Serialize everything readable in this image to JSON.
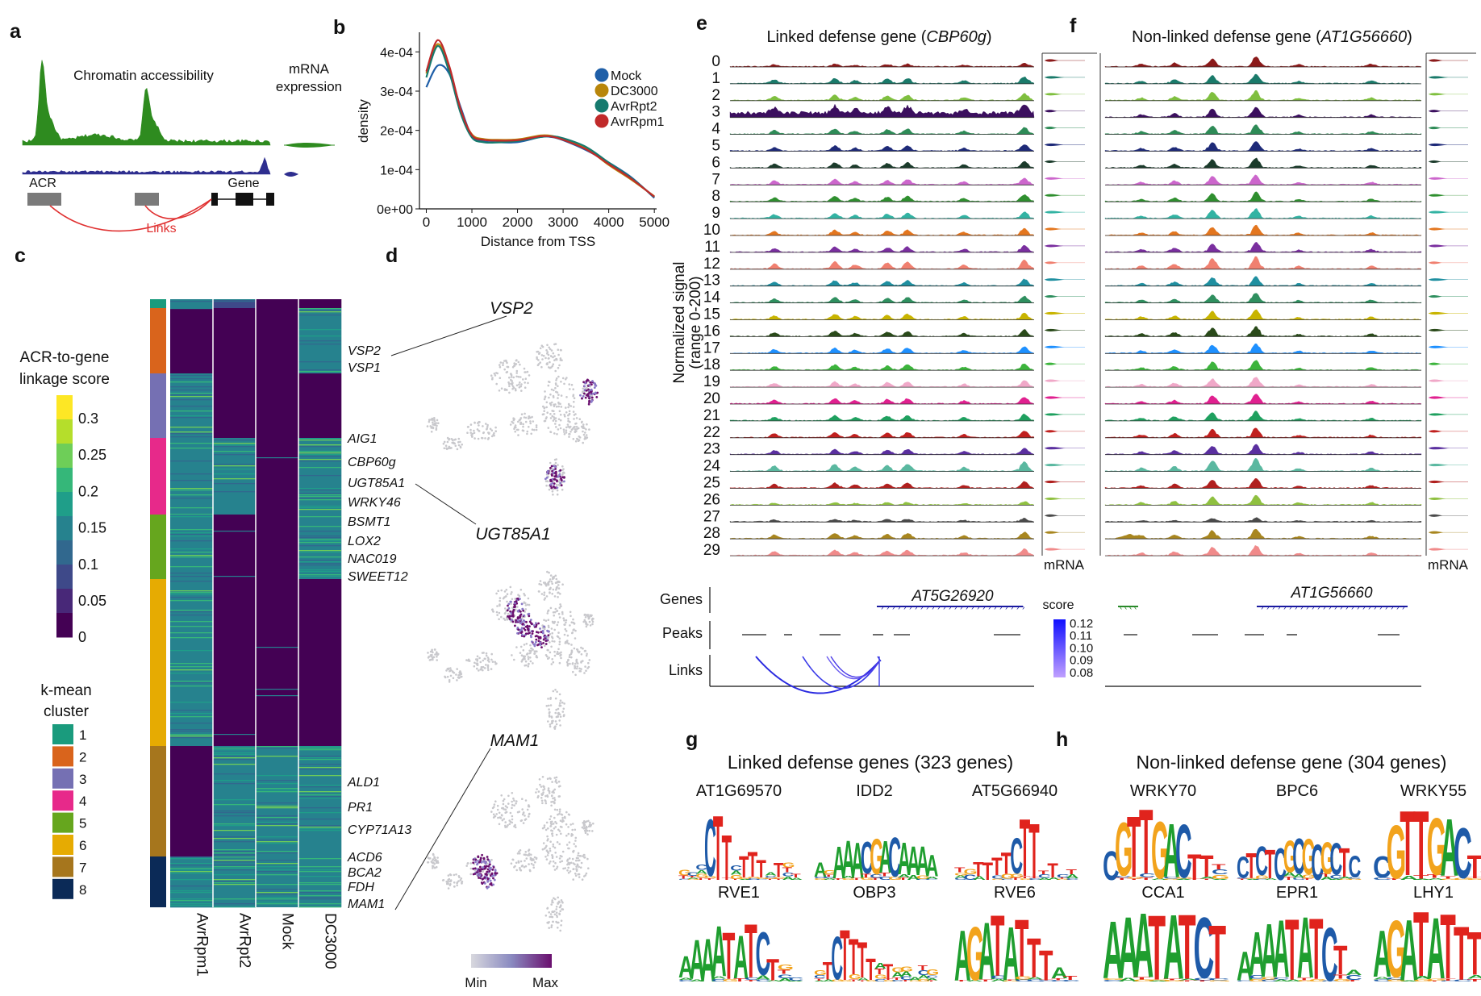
{
  "panels": {
    "a": {
      "label": "a",
      "chromatin_title": "Chromatin accessibility",
      "mrna_title_line1": "mRNA",
      "mrna_title_line2": "expression",
      "acr_label": "ACR",
      "gene_label": "Gene",
      "links_label": "Links",
      "colors": {
        "track1": "#2e8b1f",
        "track2": "#2e2e8f",
        "links": "#e03030"
      }
    },
    "b": {
      "label": "b",
      "chart_data": {
        "type": "line",
        "title": "",
        "xlabel": "Distance from TSS",
        "ylabel": "density",
        "xlim": [
          -150,
          5050
        ],
        "ylim": [
          0,
          0.00045
        ],
        "xticks": [
          0,
          1000,
          2000,
          3000,
          4000,
          5000
        ],
        "xtick_labels": [
          "0",
          "1000",
          "2000",
          "3000",
          "4000",
          "5000"
        ],
        "yticks": [
          0,
          0.0001,
          0.0002,
          0.0003,
          0.0004
        ],
        "ytick_labels": [
          "0e+00",
          "1e-04",
          "2e-04",
          "3e-04",
          "4e-04"
        ],
        "legend_position": "right",
        "x": [
          0,
          250,
          500,
          750,
          1000,
          1250,
          1500,
          2000,
          2500,
          2750,
          3000,
          3500,
          4000,
          4500,
          5000
        ],
        "series": [
          {
            "name": "Mock",
            "color": "#1f5fa8",
            "values": [
              0.00031,
              0.000365,
              0.000345,
              0.00026,
              0.000185,
              0.000172,
              0.00017,
              0.00017,
              0.000183,
              0.000183,
              0.000175,
              0.00015,
              0.000118,
              8e-05,
              2.8e-05
            ]
          },
          {
            "name": "DC3000",
            "color": "#b8860b",
            "values": [
              0.000345,
              0.00042,
              0.00036,
              0.00025,
              0.00019,
              0.000178,
              0.000176,
              0.000177,
              0.000187,
              0.000186,
              0.000178,
              0.000155,
              0.000112,
              7.4e-05,
              3.2e-05
            ]
          },
          {
            "name": "AvrRpt2",
            "color": "#167a6e",
            "values": [
              0.000335,
              0.000415,
              0.00035,
              0.000245,
              0.000182,
              0.00017,
              0.000169,
              0.000173,
              0.000183,
              0.000185,
              0.00018,
              0.000158,
              0.000118,
              7.8e-05,
              3e-05
            ]
          },
          {
            "name": "AvrRpm1",
            "color": "#c02a2a",
            "values": [
              0.00035,
              0.00043,
              0.000365,
              0.000255,
              0.000188,
              0.000176,
              0.000174,
              0.000175,
              0.000185,
              0.000184,
              0.000176,
              0.000152,
              0.000114,
              7.6e-05,
              3.1e-05
            ]
          }
        ]
      }
    },
    "c": {
      "label": "c",
      "legend_title_line1": "ACR-to-gene",
      "legend_title_line2": "linkage score",
      "score_ticks": [
        "0.3",
        "0.25",
        "0.2",
        "0.15",
        "0.1",
        "0.05",
        "0"
      ],
      "cluster_title_line1": "k-mean",
      "cluster_title_line2": "cluster",
      "clusters": [
        {
          "id": "1",
          "color": "#1a9b7d"
        },
        {
          "id": "2",
          "color": "#d9641c"
        },
        {
          "id": "3",
          "color": "#7570b3"
        },
        {
          "id": "4",
          "color": "#e7298a"
        },
        {
          "id": "5",
          "color": "#66a61e"
        },
        {
          "id": "6",
          "color": "#e6ab02"
        },
        {
          "id": "7",
          "color": "#a6761d"
        },
        {
          "id": "8",
          "color": "#0b2a57"
        }
      ],
      "columns": [
        "AvrRpm1",
        "AvrRpt2",
        "Mock",
        "DC3000"
      ],
      "genes": [
        "VSP2",
        "VSP1",
        "AIG1",
        "CBP60g",
        "UGT85A1",
        "WRKY46",
        "BSMT1",
        "LOX2",
        "NAC019",
        "SWEET12",
        "ALD1",
        "PR1",
        "CYP71A13",
        "ACD6",
        "BCA2",
        "FDH",
        "MAM1"
      ],
      "colors": {
        "low": "#440154",
        "mid": "#21918c",
        "high": "#fde725"
      }
    },
    "d": {
      "label": "d",
      "umap_titles": [
        "VSP2",
        "UGT85A1",
        "MAM1"
      ],
      "scale_min": "Min",
      "scale_max": "Max",
      "colors": {
        "base": "#c9c9cd",
        "hot": "#6a0f6e"
      }
    },
    "e": {
      "label": "e",
      "title_prefix": "Linked defense gene (",
      "title_gene": "CBP60g",
      "title_suffix": ")",
      "y_axis_line1": "Normalized signal",
      "y_axis_line2": "(range 0-200)",
      "mrna_label": "mRNA",
      "genes_row": "Genes",
      "peaks_row": "Peaks",
      "links_row": "Links",
      "gene_name": "AT5G26920"
    },
    "f": {
      "label": "f",
      "title_prefix": "Non-linked defense gene (",
      "title_gene": "AT1G56660",
      "title_suffix": ")",
      "mrna_label": "mRNA",
      "gene_name": "AT1G56660",
      "score_label": "score",
      "score_ticks": [
        "0.12",
        "0.11",
        "0.10",
        "0.09",
        "0.08"
      ]
    },
    "tracks": {
      "rows": [
        "0",
        "1",
        "2",
        "3",
        "4",
        "5",
        "6",
        "7",
        "8",
        "9",
        "10",
        "11",
        "12",
        "13",
        "14",
        "15",
        "16",
        "17",
        "18",
        "19",
        "20",
        "21",
        "22",
        "23",
        "24",
        "25",
        "26",
        "27",
        "28",
        "29"
      ],
      "colors": [
        "#8b1a1a",
        "#1a7a6a",
        "#7fbf3f",
        "#3b0f5e",
        "#2e8b57",
        "#1e2a78",
        "#1b3b2b",
        "#cc66cc",
        "#2f8f2f",
        "#33b3a3",
        "#e3761f",
        "#7a2f9f",
        "#f08070",
        "#1f8fa0",
        "#2f8f5f",
        "#c8b400",
        "#2a4a1a",
        "#1e90ff",
        "#3cb43c",
        "#f0a8c8",
        "#e0208f",
        "#1fa05f",
        "#c0201f",
        "#5a2f9f",
        "#5ab8a0",
        "#b0201f",
        "#8fc040",
        "#4a4a4a",
        "#a8861f",
        "#f08a8a",
        "#b8b8b8"
      ]
    },
    "g": {
      "label": "g",
      "title": "Linked defense genes (323 genes)",
      "motifs": [
        "AT1G69570",
        "IDD2",
        "AT5G66940",
        "RVE1",
        "OBP3",
        "RVE6"
      ]
    },
    "h": {
      "label": "h",
      "title": "Non-linked defense gene (304 genes)",
      "motifs": [
        "WRKY70",
        "BPC6",
        "WRKY55",
        "CCA1",
        "EPR1",
        "LHY1"
      ]
    }
  }
}
